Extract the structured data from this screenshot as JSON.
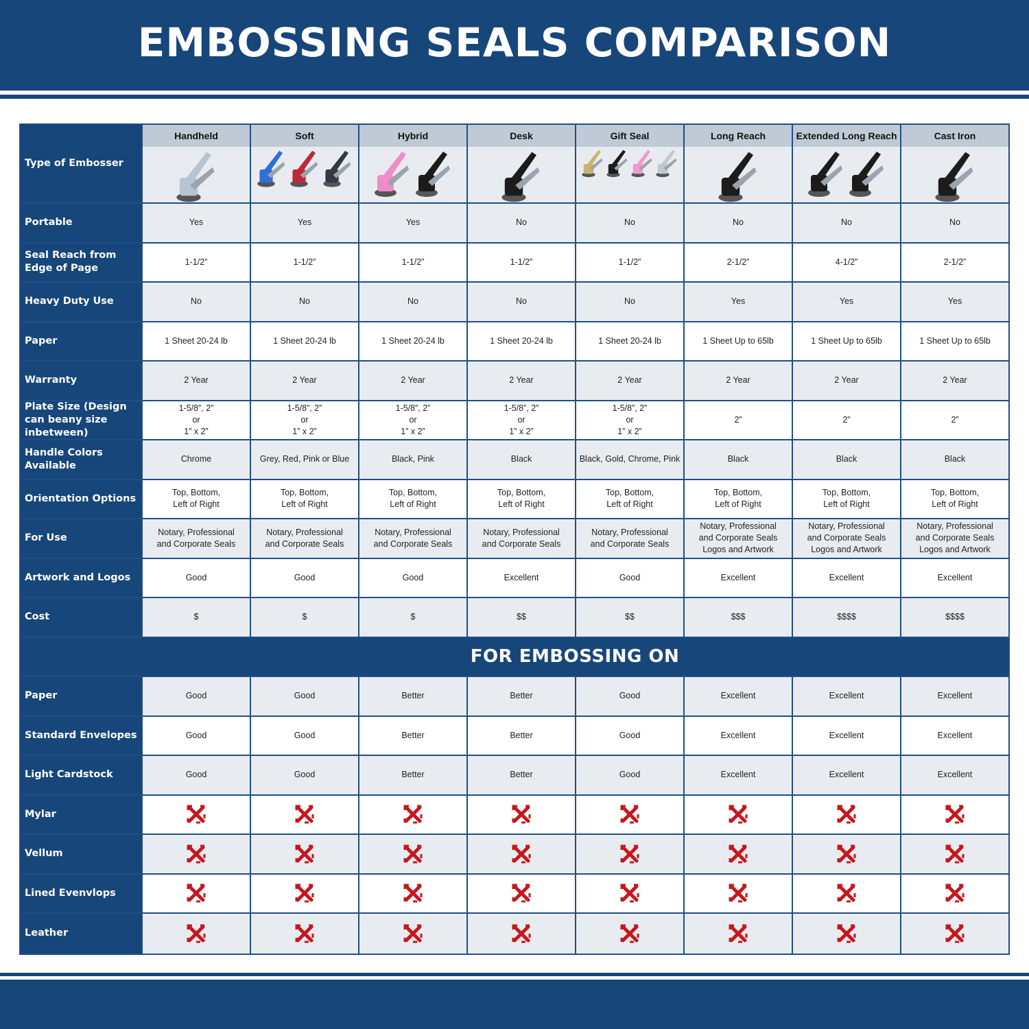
{
  "title": "EMBOSSING SEALS COMPARISON",
  "colors": {
    "brand_blue": "#17467a",
    "header_gray": "#bfcad6",
    "row_light": "#e8ecf0",
    "x_red": "#c8161d"
  },
  "header_label": "Type of Embosser",
  "columns": [
    {
      "name": "Handheld",
      "image": "chrome-handheld-embosser",
      "colors": [
        "#b8c4d4"
      ]
    },
    {
      "name": "Soft",
      "image": "blue-red-grey-soft-embossers",
      "colors": [
        "#2f6fd6",
        "#c0283a",
        "#333a44"
      ]
    },
    {
      "name": "Hybrid",
      "image": "pink-black-hybrid-embossers",
      "colors": [
        "#f28cc8",
        "#1c1c1c"
      ]
    },
    {
      "name": "Desk",
      "image": "black-desk-embosser",
      "colors": [
        "#1c1c1c"
      ]
    },
    {
      "name": "Gift Seal",
      "image": "gold-black-pink-chrome-gift-seals",
      "colors": [
        "#c9b46a",
        "#1c1c1c",
        "#f09ad0",
        "#c0c8d0"
      ]
    },
    {
      "name": "Long Reach",
      "image": "black-long-reach-embosser",
      "colors": [
        "#1c1c1c"
      ]
    },
    {
      "name": "Extended Long Reach",
      "image": "black-extended-long-reach-embossers",
      "colors": [
        "#1c1c1c",
        "#1c1c1c"
      ]
    },
    {
      "name": "Cast Iron",
      "image": "black-cast-iron-embosser",
      "colors": [
        "#1c1c1c"
      ]
    }
  ],
  "rows": [
    {
      "label": "Portable",
      "values": [
        "Yes",
        "Yes",
        "Yes",
        "No",
        "No",
        "No",
        "No",
        "No"
      ]
    },
    {
      "label": "Seal Reach from Edge of Page",
      "values": [
        "1-1/2”",
        "1-1/2”",
        "1-1/2”",
        "1-1/2”",
        "1-1/2”",
        "2-1/2”",
        "4-1/2”",
        "2-1/2”"
      ]
    },
    {
      "label": "Heavy Duty Use",
      "values": [
        "No",
        "No",
        "No",
        "No",
        "No",
        "Yes",
        "Yes",
        "Yes"
      ]
    },
    {
      "label": "Paper",
      "values": [
        "1 Sheet 20-24 lb",
        "1 Sheet 20-24 lb",
        "1 Sheet 20-24 lb",
        "1 Sheet 20-24 lb",
        "1 Sheet 20-24 lb",
        "1 Sheet Up to 65lb",
        "1 Sheet Up to 65lb",
        "1 Sheet Up to 65lb"
      ]
    },
    {
      "label": "Warranty",
      "values": [
        "2 Year",
        "2 Year",
        "2 Year",
        "2 Year",
        "2 Year",
        "2 Year",
        "2 Year",
        "2 Year"
      ]
    },
    {
      "label": "Plate Size (Design can beany size inbetween)",
      "values": [
        "1-5/8”, 2”\nor\n1” x 2”",
        "1-5/8”, 2”\nor\n1” x 2”",
        "1-5/8”, 2”\nor\n1” x 2”",
        "1-5/8”, 2”\nor\n1” x 2”",
        "1-5/8”, 2”\nor\n1” x 2”",
        "2”",
        "2”",
        "2”"
      ]
    },
    {
      "label": "Handle Colors Available",
      "values": [
        "Chrome",
        "Grey, Red, Pink or Blue",
        "Black, Pink",
        "Black",
        "Black, Gold, Chrome, Pink",
        "Black",
        "Black",
        "Black"
      ]
    },
    {
      "label": "Orientation Options",
      "values": [
        "Top, Bottom,\nLeft of Right",
        "Top, Bottom,\nLeft of Right",
        "Top, Bottom,\nLeft of Right",
        "Top, Bottom,\nLeft of Right",
        "Top, Bottom,\nLeft of Right",
        "Top, Bottom,\nLeft of Right",
        "Top, Bottom,\nLeft of Right",
        "Top, Bottom,\nLeft of Right"
      ]
    },
    {
      "label": "For Use",
      "values": [
        "Notary, Professional\nand Corporate Seals",
        "Notary, Professional\nand Corporate Seals",
        "Notary, Professional\nand Corporate Seals",
        "Notary, Professional\nand Corporate Seals",
        "Notary, Professional\nand Corporate Seals",
        "Notary, Professional\nand Corporate Seals\nLogos and Artwork",
        "Notary, Professional\nand Corporate Seals\nLogos and Artwork",
        "Notary, Professional\nand Corporate Seals\nLogos and Artwork"
      ]
    },
    {
      "label": "Artwork and Logos",
      "values": [
        "Good",
        "Good",
        "Good",
        "Excellent",
        "Good",
        "Excellent",
        "Excellent",
        "Excellent"
      ]
    },
    {
      "label": "Cost",
      "values": [
        "$",
        "$",
        "$",
        "$$",
        "$$",
        "$$$",
        "$$$$",
        "$$$$"
      ]
    }
  ],
  "section_title": "FOR EMBOSSING ON",
  "section_rows": [
    {
      "label": "Paper",
      "values": [
        "Good",
        "Good",
        "Better",
        "Better",
        "Good",
        "Excellent",
        "Excellent",
        "Excellent"
      ]
    },
    {
      "label": "Standard Envelopes",
      "values": [
        "Good",
        "Good",
        "Better",
        "Better",
        "Good",
        "Excellent",
        "Excellent",
        "Excellent"
      ]
    },
    {
      "label": "Light Cardstock",
      "values": [
        "Good",
        "Good",
        "Better",
        "Better",
        "Good",
        "Excellent",
        "Excellent",
        "Excellent"
      ]
    },
    {
      "label": "Mylar",
      "icon": "red-x-icon",
      "values": [
        "no",
        "no",
        "no",
        "no",
        "no",
        "no",
        "no",
        "no"
      ]
    },
    {
      "label": "Vellum",
      "icon": "red-x-icon",
      "values": [
        "no",
        "no",
        "no",
        "no",
        "no",
        "no",
        "no",
        "no"
      ]
    },
    {
      "label": "Lined Evenvlops",
      "icon": "red-x-icon",
      "values": [
        "no",
        "no",
        "no",
        "no",
        "no",
        "no",
        "no",
        "no"
      ]
    },
    {
      "label": "Leather",
      "icon": "red-x-icon",
      "values": [
        "no",
        "no",
        "no",
        "no",
        "no",
        "no",
        "no",
        "no"
      ]
    }
  ]
}
